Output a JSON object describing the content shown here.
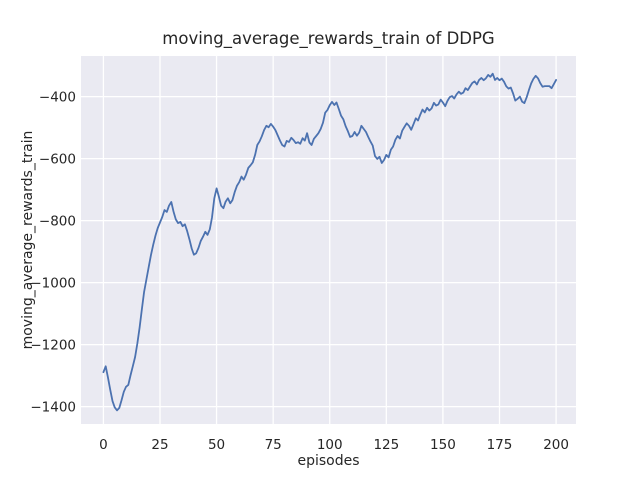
{
  "chart_data": {
    "type": "line",
    "title": "moving_average_rewards_train of DDPG",
    "xlabel": "episodes",
    "ylabel": "moving_average_rewards_train",
    "x_ticks": [
      0,
      25,
      50,
      75,
      100,
      125,
      150,
      175,
      200
    ],
    "y_ticks": [
      -400,
      -600,
      -800,
      -1000,
      -1200,
      -1400
    ],
    "xlim": [
      -9.9,
      208.8
    ],
    "ylim": [
      -1456,
      -269
    ],
    "grid": true,
    "legend": "none",
    "colors": {
      "figure_background": "#ffffff",
      "axes_background": "#eaeaf2",
      "grid": "#ffffff",
      "text": "#262626"
    },
    "series": [
      {
        "name": "DDPG",
        "color": "#4c72b0",
        "x_start": 0,
        "x_step": 1,
        "values": [
          -1289,
          -1270,
          -1305,
          -1345,
          -1382,
          -1402,
          -1412,
          -1404,
          -1380,
          -1352,
          -1336,
          -1330,
          -1298,
          -1270,
          -1240,
          -1195,
          -1145,
          -1085,
          -1030,
          -990,
          -950,
          -912,
          -878,
          -848,
          -824,
          -806,
          -788,
          -766,
          -772,
          -752,
          -740,
          -772,
          -796,
          -808,
          -804,
          -818,
          -812,
          -834,
          -860,
          -890,
          -910,
          -905,
          -888,
          -866,
          -852,
          -836,
          -846,
          -828,
          -790,
          -728,
          -696,
          -722,
          -752,
          -760,
          -739,
          -728,
          -744,
          -734,
          -708,
          -688,
          -676,
          -658,
          -668,
          -652,
          -630,
          -622,
          -612,
          -588,
          -556,
          -544,
          -528,
          -508,
          -494,
          -499,
          -488,
          -497,
          -508,
          -525,
          -542,
          -556,
          -561,
          -543,
          -546,
          -533,
          -540,
          -550,
          -547,
          -552,
          -534,
          -542,
          -518,
          -548,
          -556,
          -536,
          -527,
          -518,
          -504,
          -484,
          -452,
          -443,
          -428,
          -417,
          -427,
          -419,
          -440,
          -462,
          -473,
          -495,
          -512,
          -530,
          -527,
          -514,
          -526,
          -516,
          -494,
          -504,
          -514,
          -530,
          -545,
          -558,
          -592,
          -601,
          -594,
          -614,
          -604,
          -588,
          -596,
          -571,
          -561,
          -539,
          -527,
          -535,
          -510,
          -498,
          -486,
          -494,
          -507,
          -489,
          -470,
          -477,
          -458,
          -442,
          -451,
          -436,
          -445,
          -438,
          -420,
          -429,
          -425,
          -410,
          -419,
          -431,
          -414,
          -402,
          -398,
          -406,
          -393,
          -384,
          -391,
          -387,
          -373,
          -379,
          -367,
          -356,
          -351,
          -361,
          -346,
          -340,
          -347,
          -341,
          -330,
          -336,
          -326,
          -346,
          -340,
          -347,
          -342,
          -352,
          -367,
          -374,
          -371,
          -390,
          -413,
          -407,
          -400,
          -416,
          -421,
          -402,
          -379,
          -357,
          -343,
          -333,
          -341,
          -356,
          -368,
          -366,
          -366,
          -366,
          -373,
          -360,
          -346
        ]
      }
    ]
  }
}
